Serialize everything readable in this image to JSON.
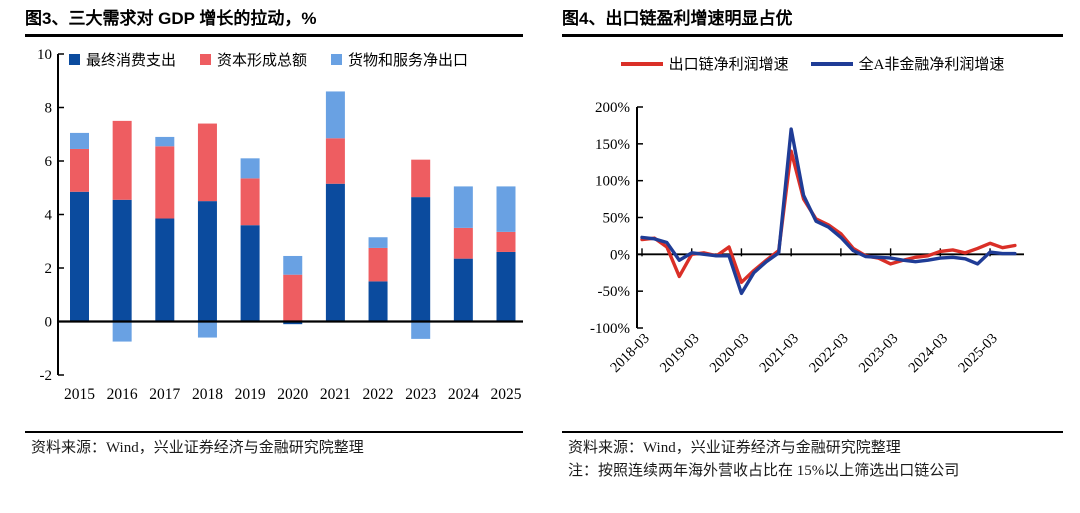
{
  "panels": {
    "left": {
      "title": "图3、三大需求对 GDP 增长的拉动，%",
      "source": "资料来源：Wind，兴业证券经济与金融研究院整理"
    },
    "right": {
      "title": "图4、出口链盈利增速明显占优",
      "source": "资料来源：Wind，兴业证券经济与金融研究院整理",
      "note": "注：按照连续两年海外营收占比在 15%以上筛选出口链公司"
    }
  },
  "colors": {
    "bar_consumption": "#0B4B9E",
    "bar_capital": "#EE5D61",
    "bar_net_exports": "#69A1E3",
    "line_export_chain": "#DA2F27",
    "line_all_a": "#1F3C96",
    "axis": "#000000"
  },
  "chart_data": [
    {
      "type": "bar",
      "stacked": true,
      "title": "图3、三大需求对 GDP 增长的拉动，%",
      "categories": [
        "2015",
        "2016",
        "2017",
        "2018",
        "2019",
        "2020",
        "2021",
        "2022",
        "2023",
        "2024",
        "2025"
      ],
      "series": [
        {
          "name": "最终消费支出",
          "color": "#0B4B9E",
          "values": [
            4.85,
            4.55,
            3.85,
            4.5,
            3.6,
            -0.1,
            5.15,
            1.5,
            4.65,
            2.35,
            2.6
          ]
        },
        {
          "name": "资本形成总额",
          "color": "#EE5D61",
          "values": [
            1.6,
            2.95,
            2.7,
            2.9,
            1.75,
            1.75,
            1.7,
            1.25,
            1.4,
            1.15,
            0.75
          ]
        },
        {
          "name": "货物和服务净出口",
          "color": "#69A1E3",
          "values": [
            0.6,
            -0.75,
            0.35,
            -0.6,
            0.75,
            0.7,
            1.75,
            0.4,
            -0.65,
            1.55,
            1.7
          ]
        }
      ],
      "ylim": [
        -2,
        10
      ],
      "yticks": [
        10,
        8,
        6,
        4,
        2,
        0,
        -2
      ],
      "grid": false,
      "legend_position": "top"
    },
    {
      "type": "line",
      "title": "图4、出口链盈利增速明显占优",
      "x": [
        "2018-03",
        "2018-06",
        "2018-09",
        "2018-12",
        "2019-03",
        "2019-06",
        "2019-09",
        "2019-12",
        "2020-03",
        "2020-06",
        "2020-09",
        "2020-12",
        "2021-03",
        "2021-06",
        "2021-09",
        "2021-12",
        "2022-03",
        "2022-06",
        "2022-09",
        "2022-12",
        "2023-03",
        "2023-06",
        "2023-09",
        "2023-12",
        "2024-03",
        "2024-06",
        "2024-09",
        "2024-12",
        "2025-03",
        "2025-06",
        "2025-09"
      ],
      "xtick_indices": [
        0,
        4,
        8,
        12,
        16,
        20,
        24,
        28
      ],
      "xtick_labels": [
        "2018-03",
        "2019-03",
        "2020-03",
        "2021-03",
        "2022-03",
        "2023-03",
        "2024-03",
        "2025-03"
      ],
      "series": [
        {
          "name": "出口链净利润增速",
          "color": "#DA2F27",
          "values": [
            20,
            22,
            10,
            -30,
            0,
            2,
            -2,
            10,
            -38,
            -22,
            -8,
            5,
            140,
            75,
            48,
            40,
            28,
            8,
            -2,
            -5,
            -13,
            -8,
            -4,
            -2,
            4,
            6,
            2,
            8,
            15,
            9,
            12
          ]
        },
        {
          "name": "全A非金融净利润增速",
          "color": "#1F3C96",
          "values": [
            23,
            21,
            16,
            -8,
            2,
            0,
            -2,
            -2,
            -53,
            -25,
            -10,
            2,
            170,
            80,
            45,
            37,
            23,
            5,
            -3,
            -4,
            -5,
            -8,
            -10,
            -8,
            -5,
            -4,
            -6,
            -13,
            3,
            1,
            1
          ]
        }
      ],
      "ylim": [
        -100,
        200
      ],
      "yticks": [
        200,
        150,
        100,
        50,
        0,
        -50,
        -100
      ],
      "ytick_suffix": "%",
      "grid": false,
      "legend_position": "top"
    }
  ]
}
